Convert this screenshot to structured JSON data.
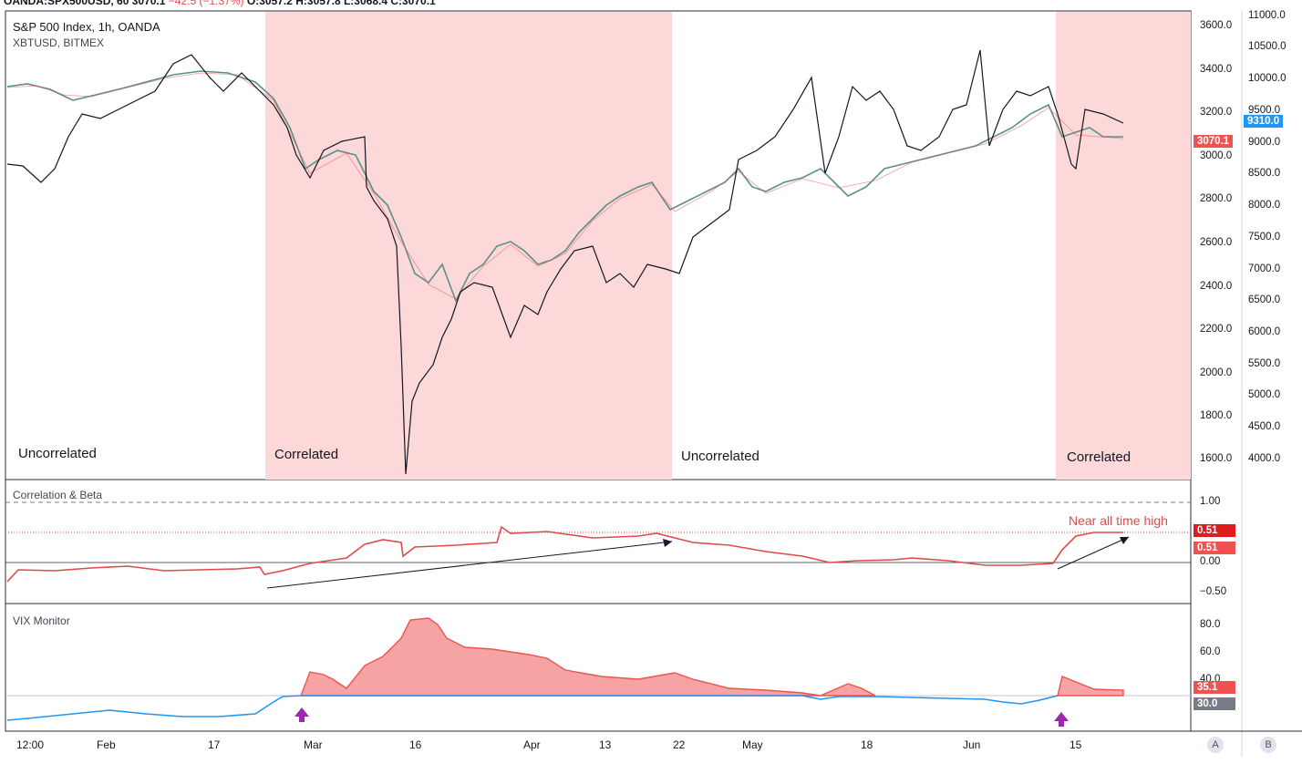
{
  "header": {
    "symbol": "OANDA:SPX500USD, 60",
    "last": "3070.1",
    "change": "−42.5 (−1.37%)",
    "open": "O:3057.2",
    "high": "H:3057.8",
    "low": "L:3068.4",
    "close": "C:3070.1"
  },
  "main_pane": {
    "series_1": "S&P 500 Index, 1h, OANDA",
    "series_2": "XBTUSD, BITMEX",
    "regions": [
      "Uncorrelated",
      "Correlated",
      "Uncorrelated",
      "Correlated"
    ],
    "right_axis_primary": [
      "3600.0",
      "3400.0",
      "3200.0",
      "3000.0",
      "2800.0",
      "2600.0",
      "2400.0",
      "2200.0",
      "2000.0",
      "1800.0",
      "1600.0"
    ],
    "right_axis_secondary": [
      "11000.0",
      "10500.0",
      "10000.0",
      "9500.0",
      "9000.0",
      "8500.0",
      "8000.0",
      "7500.0",
      "7000.0",
      "6500.0",
      "6000.0",
      "5500.0",
      "5000.0",
      "4500.0",
      "4000.0"
    ],
    "last_price_xbt": "9310.0",
    "last_price_spx": "3070.1",
    "colors": {
      "correlated_bg": "#fdd8d8",
      "spx_up": "#26a69a",
      "spx_down": "#ef5350",
      "xbt": "#131722",
      "xbt_tag": "#2196f3",
      "spx_tag": "#ef5350"
    }
  },
  "correlation_pane": {
    "title": "Correlation & Beta",
    "axis": [
      "1.00",
      "0.51",
      "0.00",
      "−0.50"
    ],
    "value_tag_1": "0.51",
    "value_tag_2": "0.51",
    "annotation": "Near all time high",
    "line_color": "#e04a4a"
  },
  "vix_pane": {
    "title": "VIX Monitor",
    "axis": [
      "80.0",
      "60.0",
      "40.0"
    ],
    "value_tag_1": "35.1",
    "value_tag_2": "30.0",
    "colors": {
      "high": "#ef5350",
      "low": "#2196f3",
      "arrow": "#9c27b0"
    }
  },
  "time_axis": [
    "12:00",
    "Feb",
    "17",
    "Mar",
    "16",
    "Apr",
    "13",
    "22",
    "May",
    "18",
    "Jun",
    "15"
  ],
  "buttons": {
    "a": "A",
    "b": "B"
  }
}
